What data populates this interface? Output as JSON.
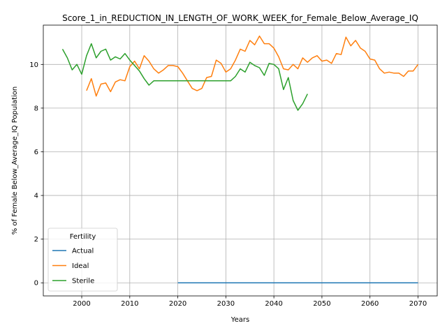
{
  "chart_data": {
    "type": "line",
    "title": "Score_1_in_REDUCTION_IN_LENGTH_OF_WORK_WEEK_for_Female_Below_Average_IQ",
    "xlabel": "Years",
    "ylabel": "% of Female Below_Average_IQ Population",
    "xlim": [
      1992,
      2074
    ],
    "ylim": [
      -0.6,
      11.8
    ],
    "xticks": [
      2000,
      2010,
      2020,
      2030,
      2040,
      2050,
      2060,
      2070
    ],
    "yticks": [
      0,
      2,
      4,
      6,
      8,
      10
    ],
    "grid": true,
    "legend": {
      "title": "Fertility",
      "placement": "lower-left"
    },
    "series": [
      {
        "name": "Actual",
        "color": "#1f77b4",
        "points": [
          [
            2020,
            0
          ],
          [
            2070,
            0
          ]
        ]
      },
      {
        "name": "Ideal",
        "color": "#ff7f0e",
        "points": [
          [
            2001,
            8.8
          ],
          [
            2002,
            9.35
          ],
          [
            2003,
            8.55
          ],
          [
            2004,
            9.1
          ],
          [
            2005,
            9.15
          ],
          [
            2006,
            8.75
          ],
          [
            2007,
            9.2
          ],
          [
            2008,
            9.3
          ],
          [
            2009,
            9.25
          ],
          [
            2010,
            9.9
          ],
          [
            2011,
            10.15
          ],
          [
            2012,
            9.8
          ],
          [
            2013,
            10.4
          ],
          [
            2014,
            10.15
          ],
          [
            2015,
            9.8
          ],
          [
            2016,
            9.6
          ],
          [
            2017,
            9.75
          ],
          [
            2018,
            9.95
          ],
          [
            2019,
            9.95
          ],
          [
            2020,
            9.9
          ],
          [
            2021,
            9.6
          ],
          [
            2022,
            9.25
          ],
          [
            2023,
            8.9
          ],
          [
            2024,
            8.8
          ],
          [
            2025,
            8.9
          ],
          [
            2026,
            9.4
          ],
          [
            2027,
            9.45
          ],
          [
            2028,
            10.2
          ],
          [
            2029,
            10.05
          ],
          [
            2030,
            9.65
          ],
          [
            2031,
            9.8
          ],
          [
            2032,
            10.2
          ],
          [
            2033,
            10.7
          ],
          [
            2034,
            10.6
          ],
          [
            2035,
            11.1
          ],
          [
            2036,
            10.9
          ],
          [
            2037,
            11.3
          ],
          [
            2038,
            10.95
          ],
          [
            2039,
            10.95
          ],
          [
            2040,
            10.75
          ],
          [
            2041,
            10.35
          ],
          [
            2042,
            9.8
          ],
          [
            2043,
            9.75
          ],
          [
            2044,
            10.0
          ],
          [
            2045,
            9.8
          ],
          [
            2046,
            10.3
          ],
          [
            2047,
            10.1
          ],
          [
            2048,
            10.3
          ],
          [
            2049,
            10.4
          ],
          [
            2050,
            10.15
          ],
          [
            2051,
            10.2
          ],
          [
            2052,
            10.05
          ],
          [
            2053,
            10.5
          ],
          [
            2054,
            10.45
          ],
          [
            2055,
            11.25
          ],
          [
            2056,
            10.85
          ],
          [
            2057,
            11.1
          ],
          [
            2058,
            10.75
          ],
          [
            2059,
            10.6
          ],
          [
            2060,
            10.25
          ],
          [
            2061,
            10.2
          ],
          [
            2062,
            9.8
          ],
          [
            2063,
            9.6
          ],
          [
            2064,
            9.65
          ],
          [
            2065,
            9.6
          ],
          [
            2066,
            9.6
          ],
          [
            2067,
            9.45
          ],
          [
            2068,
            9.7
          ],
          [
            2069,
            9.7
          ],
          [
            2070,
            10.0
          ]
        ]
      },
      {
        "name": "Sterile",
        "color": "#2ca02c",
        "points": [
          [
            1996,
            10.7
          ],
          [
            1997,
            10.3
          ],
          [
            1998,
            9.75
          ],
          [
            1999,
            10.0
          ],
          [
            2000,
            9.55
          ],
          [
            2001,
            10.4
          ],
          [
            2002,
            10.95
          ],
          [
            2003,
            10.3
          ],
          [
            2004,
            10.6
          ],
          [
            2005,
            10.7
          ],
          [
            2006,
            10.2
          ],
          [
            2007,
            10.35
          ],
          [
            2008,
            10.25
          ],
          [
            2009,
            10.5
          ],
          [
            2010,
            10.2
          ],
          [
            2011,
            9.95
          ],
          [
            2012,
            9.7
          ],
          [
            2013,
            9.35
          ],
          [
            2014,
            9.05
          ],
          [
            2015,
            9.25
          ],
          [
            2016,
            9.25
          ],
          [
            2017,
            9.25
          ],
          [
            2018,
            9.25
          ],
          [
            2019,
            9.25
          ],
          [
            2020,
            9.25
          ],
          [
            2021,
            9.25
          ],
          [
            2022,
            9.25
          ],
          [
            2023,
            9.25
          ],
          [
            2024,
            9.25
          ],
          [
            2025,
            9.25
          ],
          [
            2026,
            9.25
          ],
          [
            2027,
            9.25
          ],
          [
            2028,
            9.25
          ],
          [
            2029,
            9.25
          ],
          [
            2030,
            9.25
          ],
          [
            2031,
            9.25
          ],
          [
            2032,
            9.45
          ],
          [
            2033,
            9.8
          ],
          [
            2034,
            9.65
          ],
          [
            2035,
            10.1
          ],
          [
            2036,
            9.95
          ],
          [
            2037,
            9.85
          ],
          [
            2038,
            9.5
          ],
          [
            2039,
            10.05
          ],
          [
            2040,
            10.0
          ],
          [
            2041,
            9.8
          ],
          [
            2042,
            8.85
          ],
          [
            2043,
            9.4
          ],
          [
            2044,
            8.35
          ],
          [
            2045,
            7.9
          ],
          [
            2046,
            8.2
          ],
          [
            2047,
            8.65
          ]
        ]
      }
    ]
  }
}
